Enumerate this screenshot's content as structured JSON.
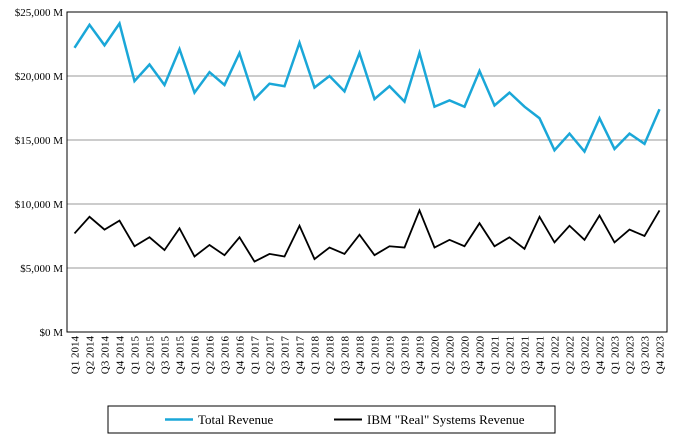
{
  "chart_data": {
    "type": "line",
    "title": "",
    "xlabel": "",
    "ylabel": "",
    "ylim": [
      0,
      25000
    ],
    "yticks": [
      "$0 M",
      "$5,000 M",
      "$10,000 M",
      "$15,000 M",
      "$20,000 M",
      "$25,000 M"
    ],
    "ytick_values": [
      0,
      5000,
      10000,
      15000,
      20000,
      25000
    ],
    "grid": true,
    "legend_position": "bottom",
    "categories": [
      "Q1 2014",
      "Q2 2014",
      "Q3 2014",
      "Q4 2014",
      "Q1 2015",
      "Q2 2015",
      "Q3 2015",
      "Q4 2015",
      "Q1 2016",
      "Q2 2016",
      "Q3 2016",
      "Q4 2016",
      "Q1 2017",
      "Q2 2017",
      "Q3 2017",
      "Q4 2017",
      "Q1 2018",
      "Q2 2018",
      "Q3 2018",
      "Q4 2018",
      "Q1 2019",
      "Q2 2019",
      "Q3 2019",
      "Q4 2019",
      "Q1 2020",
      "Q2 2020",
      "Q3 2020",
      "Q4 2020",
      "Q1 2021",
      "Q2 2021",
      "Q3 2021",
      "Q4 2021",
      "Q1 2022",
      "Q2 2022",
      "Q3 2022",
      "Q4 2022",
      "Q1 2023",
      "Q2 2023",
      "Q3 2023",
      "Q4 2023"
    ],
    "series": [
      {
        "name": "Total Revenue",
        "color": "#1AA7D8",
        "values": [
          22200,
          24000,
          22400,
          24100,
          19600,
          20900,
          19300,
          22100,
          18700,
          20300,
          19300,
          21800,
          18200,
          19400,
          19200,
          22600,
          19100,
          20000,
          18800,
          21800,
          18200,
          19200,
          18000,
          21800,
          17600,
          18100,
          17600,
          20400,
          17700,
          18700,
          17600,
          16700,
          14200,
          15500,
          14100,
          16700,
          14300,
          15500,
          14700,
          17400
        ]
      },
      {
        "name": "IBM \"Real\" Systems Revenue",
        "color": "#000000",
        "values": [
          7700,
          9000,
          8000,
          8700,
          6700,
          7400,
          6400,
          8100,
          5900,
          6800,
          6000,
          7400,
          5500,
          6100,
          5900,
          8300,
          5700,
          6600,
          6100,
          7600,
          6000,
          6700,
          6600,
          9500,
          6600,
          7200,
          6700,
          8500,
          6700,
          7400,
          6500,
          9000,
          7000,
          8300,
          7200,
          9100,
          7000,
          8000,
          7500,
          9500
        ]
      }
    ]
  },
  "colors": {
    "grid": "#9a9a9a",
    "axis": "#000000"
  }
}
